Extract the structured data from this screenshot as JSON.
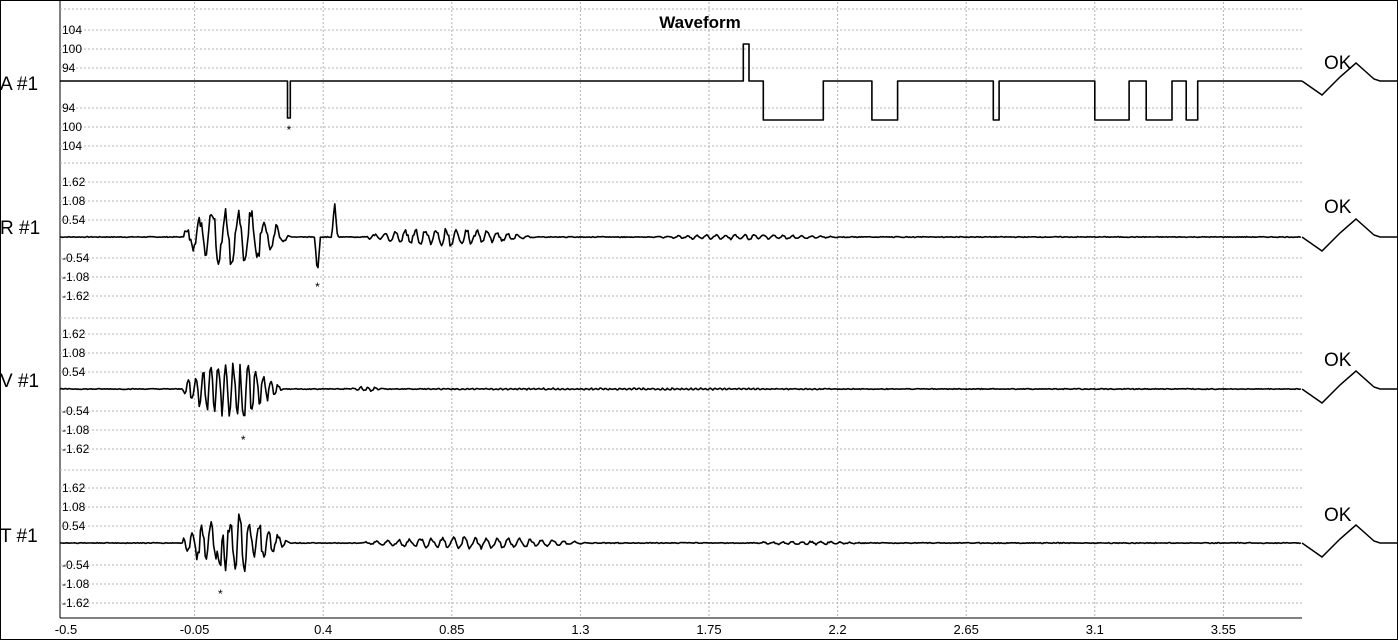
{
  "chart_data": {
    "type": "line",
    "title": "Waveform",
    "x_ticks": [
      "-0.5",
      "-0.05",
      "0.4",
      "0.85",
      "1.3",
      "1.75",
      "2.2",
      "2.65",
      "3.1",
      "3.55"
    ],
    "xlim": [
      -0.5,
      4.0
    ],
    "grid": true,
    "channels": [
      {
        "label": "A #1",
        "y_ticks_upper": [
          "104",
          "100",
          "94"
        ],
        "y_ticks_lower": [
          "94",
          "100",
          "104"
        ],
        "marker": "*",
        "marker_x": 0.28,
        "status": "OK",
        "kind": "digital",
        "pulses": [
          {
            "x0": 0.275,
            "x1": 0.285,
            "level": -1
          },
          {
            "x0": 1.87,
            "x1": 1.89,
            "level": 1
          },
          {
            "x0": 1.94,
            "x1": 2.15,
            "level": -1
          },
          {
            "x0": 2.32,
            "x1": 2.41,
            "level": -1
          },
          {
            "x0": 2.745,
            "x1": 2.765,
            "level": -1
          },
          {
            "x0": 3.1,
            "x1": 3.22,
            "level": -1
          },
          {
            "x0": 3.28,
            "x1": 3.37,
            "level": -1
          },
          {
            "x0": 3.42,
            "x1": 3.46,
            "level": -1
          }
        ]
      },
      {
        "label": "R #1",
        "y_ticks_upper": [
          "1.62",
          "1.08",
          "0.54"
        ],
        "y_ticks_lower": [
          "-0.54",
          "-1.08",
          "-1.62"
        ],
        "marker": "*",
        "marker_x": 0.38,
        "status": "OK",
        "kind": "analog",
        "y_range": [
          -1.62,
          1.62
        ],
        "bursts": [
          {
            "x0": -0.09,
            "x1": 0.55,
            "amp": 0.78,
            "freq": 22
          },
          {
            "x0": 0.55,
            "x1": 1.55,
            "amp": 0.22,
            "freq": 28
          },
          {
            "x0": 1.55,
            "x1": 2.7,
            "amp": 0.06,
            "freq": 30
          }
        ],
        "peaks": [
          {
            "x": 0.38,
            "y": -0.95
          },
          {
            "x": 0.44,
            "y": 0.9
          }
        ]
      },
      {
        "label": "V #1",
        "y_ticks_upper": [
          "1.62",
          "1.08",
          "0.54"
        ],
        "y_ticks_lower": [
          "-0.54",
          "-1.08",
          "-1.62"
        ],
        "marker": "*",
        "marker_x": 0.12,
        "status": "OK",
        "kind": "analog",
        "y_range": [
          -1.62,
          1.62
        ],
        "bursts": [
          {
            "x0": -0.09,
            "x1": 0.5,
            "amp": 0.7,
            "freq": 38
          },
          {
            "x0": 0.5,
            "x1": 0.7,
            "amp": 0.06,
            "freq": 40
          },
          {
            "x0": 0.7,
            "x1": 3.6,
            "amp": 0.02,
            "freq": 60
          }
        ],
        "peaks": [
          {
            "x": 0.12,
            "y": -0.7
          }
        ]
      },
      {
        "label": "T #1",
        "y_ticks_upper": [
          "1.62",
          "1.08",
          "0.54"
        ],
        "y_ticks_lower": [
          "-0.54",
          "-1.08",
          "-1.62"
        ],
        "marker": "*",
        "marker_x": 0.04,
        "status": "OK",
        "kind": "analog",
        "y_range": [
          -1.62,
          1.62
        ],
        "bursts": [
          {
            "x0": -0.09,
            "x1": 0.54,
            "amp": 0.7,
            "freq": 30
          },
          {
            "x0": 0.54,
            "x1": 1.9,
            "amp": 0.14,
            "freq": 26
          },
          {
            "x0": 1.9,
            "x1": 2.6,
            "amp": 0.04,
            "freq": 30
          }
        ],
        "peaks": [
          {
            "x": 0.04,
            "y": -0.78
          }
        ]
      }
    ]
  }
}
